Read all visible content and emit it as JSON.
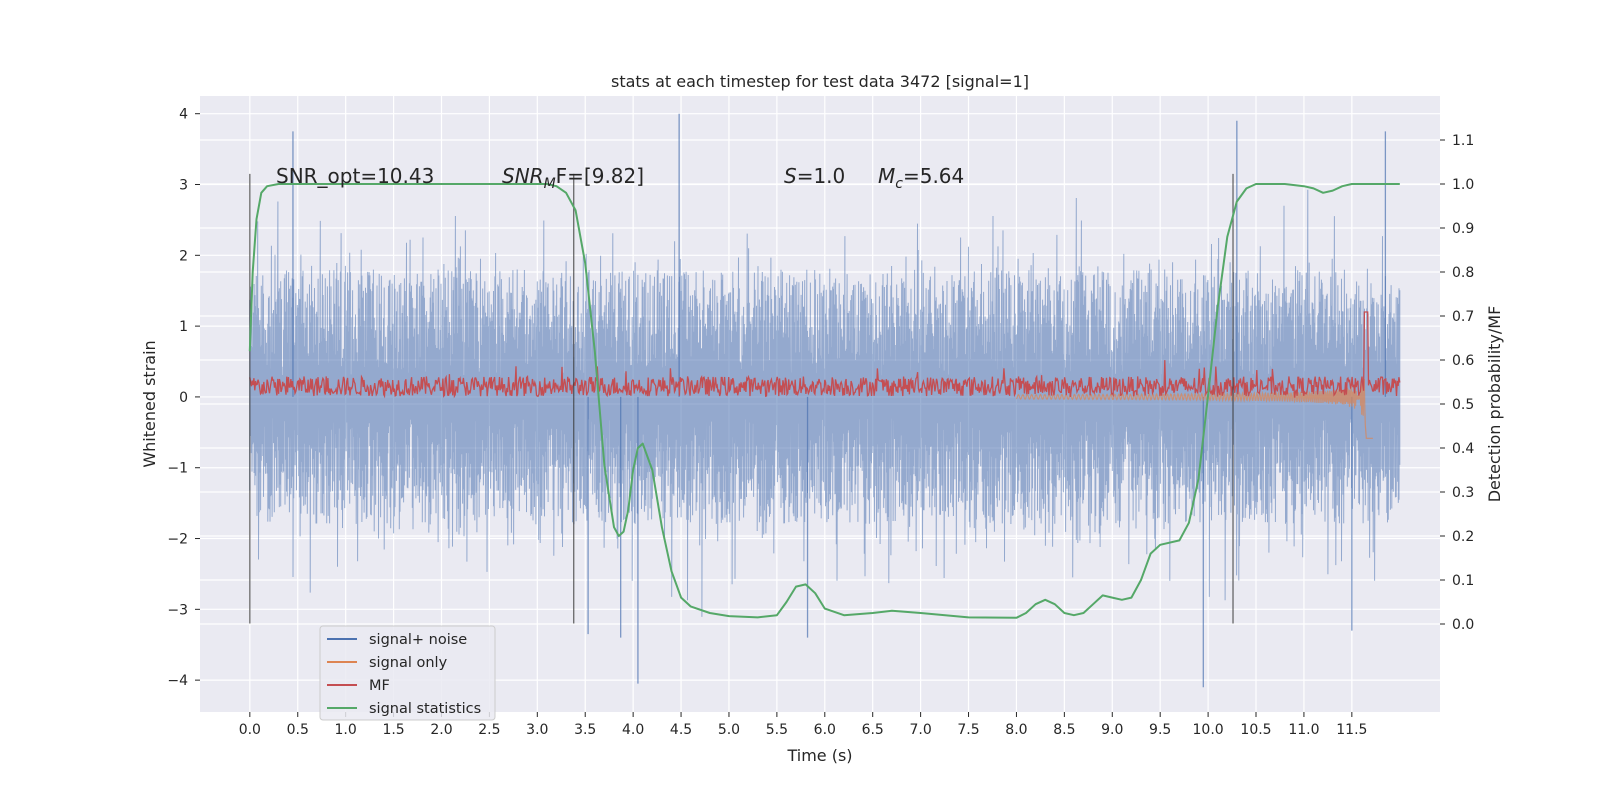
{
  "chart_data": {
    "type": "line",
    "title": "stats at each timestep for test data 3472 [signal=1]",
    "xlabel": "Time (s)",
    "ylabel": "Whitened strain",
    "y2label": "Detection probability/MF",
    "xlim": [
      -0.52,
      12.42
    ],
    "ylim": [
      -4.45,
      4.25
    ],
    "y2lim": [
      -0.2,
      1.2
    ],
    "xticks": [
      0.0,
      0.5,
      1.0,
      1.5,
      2.0,
      2.5,
      3.0,
      3.5,
      4.0,
      4.5,
      5.0,
      5.5,
      6.0,
      6.5,
      7.0,
      7.5,
      8.0,
      8.5,
      9.0,
      9.5,
      10.0,
      10.5,
      11.0,
      11.5
    ],
    "xtick_labels": [
      "0.0",
      "0.5",
      "1.0",
      "1.5",
      "2.0",
      "2.5",
      "3.0",
      "3.5",
      "4.0",
      "4.5",
      "5.0",
      "5.5",
      "6.0",
      "6.5",
      "7.0",
      "7.5",
      "8.0",
      "8.5",
      "9.0",
      "9.5",
      "10.0",
      "10.5",
      "11.0",
      "11.5"
    ],
    "yticks": [
      -4,
      -3,
      -2,
      -1,
      0,
      1,
      2,
      3,
      4
    ],
    "ytick_labels": [
      "−4",
      "−3",
      "−2",
      "−1",
      "0",
      "1",
      "2",
      "3",
      "4"
    ],
    "y2ticks": [
      0.0,
      0.1,
      0.2,
      0.3,
      0.4,
      0.5,
      0.6,
      0.7,
      0.8,
      0.9,
      1.0,
      1.1
    ],
    "y2tick_labels": [
      "0.0",
      "0.1",
      "0.2",
      "0.3",
      "0.4",
      "0.5",
      "0.6",
      "0.7",
      "0.8",
      "0.9",
      "1.0",
      "1.1"
    ],
    "grid": true,
    "background": "#eaeaf2",
    "legend": {
      "placement": "lower-left",
      "entries": [
        {
          "label": "signal+ noise",
          "color": "#4c72b0"
        },
        {
          "label": "signal only",
          "color": "#dd8452"
        },
        {
          "label": "MF",
          "color": "#c44e52"
        },
        {
          "label": "signal statistics",
          "color": "#55a868"
        }
      ]
    },
    "annotations": [
      {
        "id": "snr-opt",
        "text": "SNR_opt=10.43"
      },
      {
        "id": "snr-mf",
        "prefix": "SNR",
        "sub": "M",
        "suffix": "F=[9.82]"
      },
      {
        "id": "s-val",
        "prefix": "S",
        "suffix": "=1.0"
      },
      {
        "id": "mc-val",
        "prefix": "M",
        "sub": "c",
        "suffix": "=5.64"
      }
    ],
    "vertical_markers": [
      {
        "x": 0.0,
        "y_from": -3.2,
        "y_to": 3.15
      },
      {
        "x": 3.38,
        "y_from": -3.2,
        "y_to": 3.15
      },
      {
        "x": 10.26,
        "y_from": -3.2,
        "y_to": 3.15
      }
    ],
    "series": [
      {
        "name": "signal+ noise",
        "axis": "left",
        "color": "#4c72b0",
        "kind": "noise",
        "x_range": [
          0.0,
          12.0
        ],
        "envelope": 2.5,
        "peaks": [
          [
            0.45,
            3.75
          ],
          [
            3.53,
            -3.35
          ],
          [
            4.05,
            -4.05
          ],
          [
            3.87,
            -3.4
          ],
          [
            4.48,
            4.0
          ],
          [
            5.82,
            -3.4
          ],
          [
            9.95,
            -4.1
          ],
          [
            10.3,
            3.9
          ],
          [
            11.85,
            3.75
          ],
          [
            11.5,
            -3.3
          ]
        ]
      },
      {
        "name": "signal only",
        "axis": "left",
        "color": "#dd8452",
        "kind": "chirp",
        "x_range": [
          8.0,
          11.72
        ],
        "peak_x": 11.66,
        "peak_amplitude": 0.9
      },
      {
        "name": "MF",
        "axis": "left",
        "color": "#c44e52",
        "kind": "mf",
        "x_range": [
          0.0,
          12.0
        ],
        "level": 0.15,
        "spike": [
          11.65,
          1.2
        ]
      },
      {
        "name": "signal statistics",
        "axis": "right",
        "color": "#55a868",
        "kind": "line",
        "x": [
          0.0,
          0.03,
          0.07,
          0.12,
          0.18,
          0.3,
          0.5,
          1.0,
          2.0,
          3.0,
          3.1,
          3.2,
          3.3,
          3.4,
          3.5,
          3.6,
          3.7,
          3.8,
          3.85,
          3.9,
          3.95,
          4.0,
          4.05,
          4.1,
          4.2,
          4.3,
          4.4,
          4.5,
          4.6,
          4.8,
          5.0,
          5.3,
          5.5,
          5.6,
          5.7,
          5.8,
          5.9,
          6.0,
          6.2,
          6.5,
          6.7,
          7.0,
          7.5,
          8.0,
          8.1,
          8.2,
          8.3,
          8.4,
          8.5,
          8.6,
          8.7,
          8.8,
          8.9,
          9.0,
          9.1,
          9.2,
          9.3,
          9.4,
          9.5,
          9.7,
          9.8,
          9.9,
          10.0,
          10.1,
          10.2,
          10.3,
          10.4,
          10.5,
          10.6,
          10.8,
          11.0,
          11.1,
          11.2,
          11.3,
          11.4,
          11.5,
          11.6,
          11.7,
          11.8,
          11.9,
          12.0
        ],
        "y": [
          0.62,
          0.8,
          0.92,
          0.98,
          0.995,
          1.0,
          1.0,
          1.0,
          1.0,
          1.0,
          1.0,
          0.995,
          0.98,
          0.94,
          0.82,
          0.62,
          0.36,
          0.22,
          0.2,
          0.21,
          0.26,
          0.35,
          0.4,
          0.41,
          0.35,
          0.22,
          0.12,
          0.06,
          0.04,
          0.025,
          0.018,
          0.015,
          0.02,
          0.05,
          0.085,
          0.09,
          0.07,
          0.035,
          0.02,
          0.025,
          0.03,
          0.025,
          0.015,
          0.014,
          0.025,
          0.045,
          0.055,
          0.045,
          0.025,
          0.02,
          0.025,
          0.045,
          0.065,
          0.06,
          0.055,
          0.06,
          0.1,
          0.16,
          0.18,
          0.19,
          0.23,
          0.33,
          0.52,
          0.72,
          0.88,
          0.96,
          0.99,
          1.0,
          1.0,
          1.0,
          0.995,
          0.99,
          0.98,
          0.985,
          0.995,
          1.0,
          1.0,
          1.0,
          1.0,
          1.0,
          1.0
        ]
      }
    ]
  }
}
